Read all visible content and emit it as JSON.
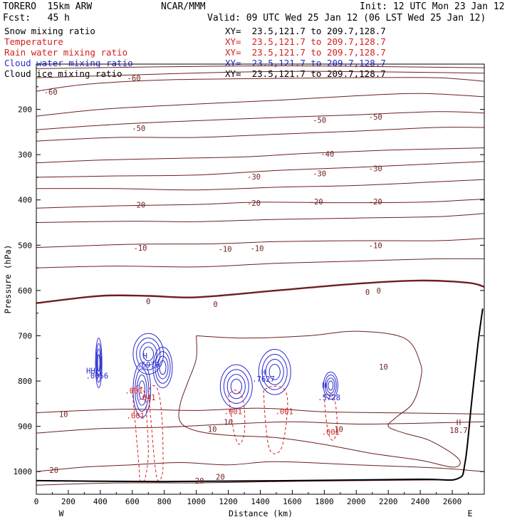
{
  "header": {
    "model": "TORERO  15km ARW",
    "org": "NCAR/MMM",
    "init": "Init: 12 UTC Mon 23 Jan 12",
    "fcst": "Fcst:   45 h",
    "valid": "Valid: 09 UTC Wed 25 Jan 12 (06 LST Wed 25 Jan 12)",
    "colors": {
      "black": "#000000",
      "maroon": "#7a1f1f",
      "red": "#d42020",
      "blue": "#2a2ad0"
    }
  },
  "fields": [
    {
      "name": "Snow mixing ratio",
      "xy": "XY=  23.5,121.7 to 209.7,128.7",
      "color": "#000000"
    },
    {
      "name": "Temperature",
      "xy": "XY=  23.5,121.7 to 209.7,128.7",
      "color": "#d42020"
    },
    {
      "name": "Rain water mixing ratio",
      "xy": "XY=  23.5,121.7 to 209.7,128.7",
      "color": "#d42020"
    },
    {
      "name": "Cloud water mixing ratio",
      "xy": "XY=  23.5,121.7 to 209.7,128.7",
      "color": "#2a2ad0"
    },
    {
      "name": "Cloud ice mixing ratio",
      "xy": "XY=  23.5,121.7 to 209.7,128.7",
      "color": "#000000"
    }
  ],
  "chart_data": {
    "type": "contour",
    "xlabel": "Distance (km)",
    "ylabel": "Pressure (hPa)",
    "xlim": [
      0,
      2800
    ],
    "ylim": [
      1050,
      100
    ],
    "x_ticks": [
      0,
      200,
      400,
      600,
      800,
      1000,
      1200,
      1400,
      1600,
      1800,
      2000,
      2200,
      2400,
      2600
    ],
    "y_ticks": [
      200,
      300,
      400,
      500,
      600,
      700,
      800,
      900,
      1000
    ],
    "left_end_label": "W",
    "right_end_label": "E",
    "temperature_contours": [
      {
        "level": -60,
        "points": [
          [
            0,
            160
          ],
          [
            300,
            145
          ],
          [
            800,
            135
          ],
          [
            1400,
            132
          ],
          [
            2000,
            130
          ],
          [
            2500,
            130
          ],
          [
            2800,
            138
          ]
        ]
      },
      {
        "level": -60,
        "points": [
          [
            0,
            130
          ],
          [
            500,
            125
          ],
          [
            1200,
            118
          ],
          [
            1800,
            116
          ],
          [
            2800,
            120
          ]
        ]
      },
      {
        "level": -60,
        "points": [
          [
            0,
            110
          ],
          [
            800,
            106
          ],
          [
            1600,
            104
          ],
          [
            2800,
            108
          ]
        ]
      },
      {
        "level": -50,
        "points": [
          [
            0,
            215
          ],
          [
            400,
            200
          ],
          [
            900,
            190
          ],
          [
            1500,
            180
          ],
          [
            2000,
            170
          ],
          [
            2400,
            165
          ],
          [
            2800,
            172
          ]
        ]
      },
      {
        "level": -50,
        "points": [
          [
            0,
            245
          ],
          [
            500,
            233
          ],
          [
            1000,
            225
          ],
          [
            1500,
            218
          ],
          [
            2000,
            212
          ],
          [
            2500,
            205
          ],
          [
            2800,
            208
          ]
        ]
      },
      {
        "level": -40,
        "points": [
          [
            0,
            270
          ],
          [
            500,
            262
          ],
          [
            1000,
            262
          ],
          [
            1500,
            255
          ],
          [
            2000,
            248
          ],
          [
            2500,
            240
          ],
          [
            2800,
            240
          ]
        ]
      },
      {
        "level": -30,
        "points": [
          [
            0,
            318
          ],
          [
            400,
            312
          ],
          [
            900,
            308
          ],
          [
            1300,
            305
          ],
          [
            1700,
            297
          ],
          [
            2200,
            290
          ],
          [
            2800,
            285
          ]
        ]
      },
      {
        "level": -30,
        "points": [
          [
            0,
            350
          ],
          [
            500,
            347
          ],
          [
            1000,
            345
          ],
          [
            1500,
            335
          ],
          [
            2000,
            328
          ],
          [
            2500,
            320
          ],
          [
            2800,
            315
          ]
        ]
      },
      {
        "level": -20,
        "points": [
          [
            0,
            375
          ],
          [
            500,
            375
          ],
          [
            1000,
            378
          ],
          [
            1500,
            372
          ],
          [
            2000,
            368
          ],
          [
            2500,
            360
          ],
          [
            2800,
            355
          ]
        ]
      },
      {
        "level": -20,
        "points": [
          [
            0,
            418
          ],
          [
            500,
            413
          ],
          [
            1000,
            410
          ],
          [
            1400,
            405
          ],
          [
            1900,
            406
          ],
          [
            2400,
            405
          ],
          [
            2800,
            398
          ]
        ]
      },
      {
        "level": -10,
        "points": [
          [
            0,
            450
          ],
          [
            600,
            447
          ],
          [
            1000,
            448
          ],
          [
            1500,
            443
          ],
          [
            2000,
            440
          ],
          [
            2500,
            437
          ],
          [
            2800,
            430
          ]
        ]
      },
      {
        "level": -10,
        "points": [
          [
            0,
            505
          ],
          [
            600,
            498
          ],
          [
            1100,
            497
          ],
          [
            1500,
            492
          ],
          [
            2000,
            490
          ],
          [
            2500,
            490
          ],
          [
            2800,
            485
          ]
        ]
      },
      {
        "level": -10,
        "points": [
          [
            0,
            550
          ],
          [
            500,
            546
          ],
          [
            1000,
            548
          ],
          [
            1500,
            540
          ],
          [
            2000,
            535
          ],
          [
            2500,
            530
          ],
          [
            2800,
            530
          ]
        ]
      },
      {
        "level": 0,
        "points": [
          [
            0,
            628
          ],
          [
            400,
            612
          ],
          [
            700,
            612
          ],
          [
            1000,
            615
          ],
          [
            1500,
            600
          ],
          [
            2000,
            585
          ],
          [
            2400,
            578
          ],
          [
            2700,
            583
          ],
          [
            2800,
            592
          ]
        ]
      },
      {
        "level": 10,
        "points": [
          [
            0,
            870
          ],
          [
            300,
            865
          ],
          [
            600,
            862
          ],
          [
            1000,
            865
          ],
          [
            1400,
            860
          ],
          [
            1800,
            868
          ],
          [
            2200,
            870
          ],
          [
            2600,
            872
          ],
          [
            2800,
            873
          ]
        ]
      },
      {
        "level": 10,
        "points": [
          [
            0,
            915
          ],
          [
            400,
            905
          ],
          [
            800,
            902
          ],
          [
            1200,
            895
          ],
          [
            1600,
            890
          ],
          [
            2000,
            895
          ],
          [
            2400,
            893
          ],
          [
            2800,
            890
          ]
        ]
      },
      {
        "level": 20,
        "points": [
          [
            0,
            1000
          ],
          [
            300,
            990
          ],
          [
            600,
            985
          ],
          [
            900,
            980
          ],
          [
            1200,
            985
          ],
          [
            1500,
            978
          ],
          [
            2000,
            985
          ],
          [
            2500,
            992
          ],
          [
            2800,
            1000
          ]
        ]
      },
      {
        "level": 20,
        "points": [
          [
            0,
            1030
          ],
          [
            500,
            1025
          ],
          [
            1000,
            1025
          ],
          [
            1500,
            1022
          ],
          [
            2000,
            1020
          ],
          [
            2600,
            1018
          ]
        ]
      }
    ],
    "temperature_labels": [
      {
        "text": "-60",
        "x": 90,
        "y": 163
      },
      {
        "text": "-60",
        "x": 610,
        "y": 132
      },
      {
        "text": "-50",
        "x": 640,
        "y": 243
      },
      {
        "text": "-50",
        "x": 1770,
        "y": 225
      },
      {
        "text": "-50",
        "x": 2120,
        "y": 218
      },
      {
        "text": "-40",
        "x": 1820,
        "y": 300
      },
      {
        "text": "-30",
        "x": 1360,
        "y": 350
      },
      {
        "text": "-30",
        "x": 1770,
        "y": 343
      },
      {
        "text": "-30",
        "x": 2120,
        "y": 332
      },
      {
        "text": "-20",
        "x": 640,
        "y": 412
      },
      {
        "text": "-20",
        "x": 1360,
        "y": 408
      },
      {
        "text": "-20",
        "x": 1750,
        "y": 405
      },
      {
        "text": "-20",
        "x": 2120,
        "y": 405
      },
      {
        "text": "-10",
        "x": 650,
        "y": 507
      },
      {
        "text": "-10",
        "x": 1180,
        "y": 510
      },
      {
        "text": "-10",
        "x": 1380,
        "y": 508
      },
      {
        "text": "-10",
        "x": 2120,
        "y": 502
      },
      {
        "text": "0",
        "x": 700,
        "y": 625
      },
      {
        "text": "0",
        "x": 1120,
        "y": 632
      },
      {
        "text": "0",
        "x": 2070,
        "y": 605
      },
      {
        "text": "0",
        "x": 2140,
        "y": 602
      },
      {
        "text": "10",
        "x": 170,
        "y": 875
      },
      {
        "text": "10",
        "x": 1100,
        "y": 908
      },
      {
        "text": "10",
        "x": 1200,
        "y": 892
      },
      {
        "text": "10",
        "x": 1890,
        "y": 908
      },
      {
        "text": "10",
        "x": 2170,
        "y": 770
      },
      {
        "text": "20",
        "x": 110,
        "y": 998
      },
      {
        "text": "20",
        "x": 1020,
        "y": 1022
      },
      {
        "text": "20",
        "x": 1150,
        "y": 1013
      }
    ],
    "high_markers": [
      {
        "text": "H",
        "x": 2640,
        "y": 893
      },
      {
        "text": "18.7",
        "x": 2640,
        "y": 910
      }
    ],
    "cloud_annotations": [
      {
        "text": "HH",
        "x": 340,
        "y": 779
      },
      {
        "text": ".0056",
        "x": 380,
        "y": 790
      },
      {
        "text": "H",
        "x": 680,
        "y": 746
      },
      {
        "text": ".6979",
        "x": 700,
        "y": 765
      },
      {
        "text": ".001",
        "x": 610,
        "y": 823
      },
      {
        "text": ".001",
        "x": 620,
        "y": 878
      },
      {
        "text": ".041",
        "x": 690,
        "y": 838
      },
      {
        "text": "H",
        "x": 1420,
        "y": 782
      },
      {
        "text": ".7627",
        "x": 1420,
        "y": 797
      },
      {
        "text": ".001",
        "x": 1230,
        "y": 868
      },
      {
        "text": ".001",
        "x": 1550,
        "y": 868
      },
      {
        "text": "H",
        "x": 1800,
        "y": 811
      },
      {
        "text": ".5728",
        "x": 1830,
        "y": 838
      },
      {
        "text": ".001",
        "x": 1840,
        "y": 914
      }
    ]
  }
}
